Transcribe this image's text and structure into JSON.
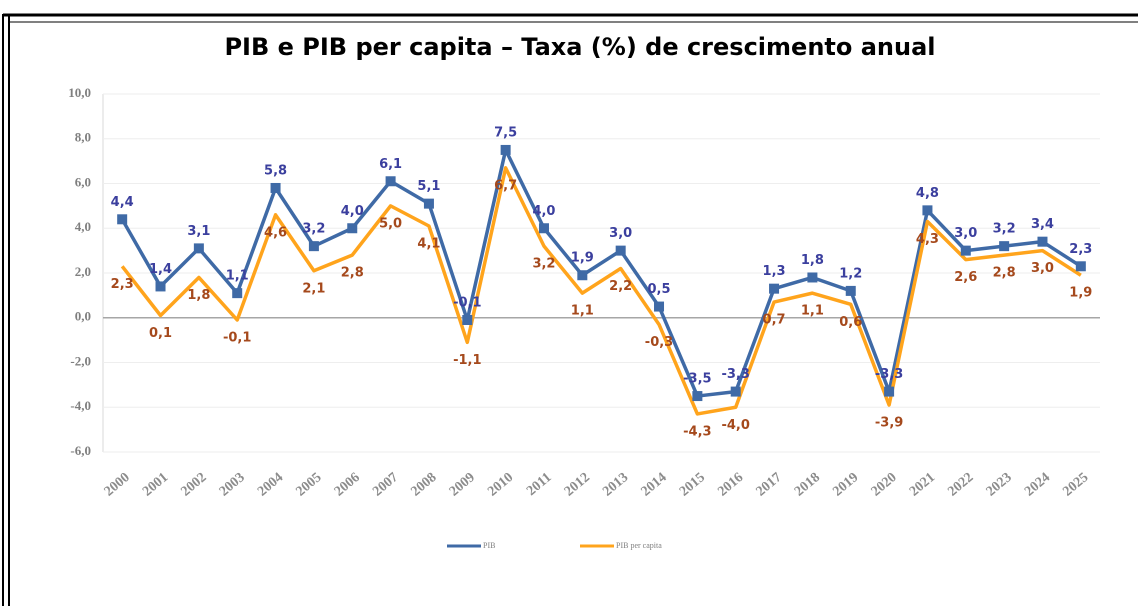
{
  "chart_data": {
    "type": "line",
    "title": "PIB e PIB per capita – Taxa (%) de crescimento anual",
    "categories": [
      "2000",
      "2001",
      "2002",
      "2003",
      "2004",
      "2005",
      "2006",
      "2007",
      "2008",
      "2009",
      "2010",
      "2011",
      "2012",
      "2013",
      "2014",
      "2015",
      "2016",
      "2017",
      "2018",
      "2019",
      "2020",
      "2021",
      "2022",
      "2023",
      "2024",
      "2025"
    ],
    "series": [
      {
        "name": "PIB",
        "color": "#3f6aa6",
        "label_color": "#3b3f9e",
        "marker": "square",
        "values": [
          4.4,
          1.4,
          3.1,
          1.1,
          5.8,
          3.2,
          4.0,
          6.1,
          5.1,
          -0.1,
          7.5,
          4.0,
          1.9,
          3.0,
          0.5,
          -3.5,
          -3.3,
          1.3,
          1.8,
          1.2,
          -3.3,
          4.8,
          3.0,
          3.2,
          3.4,
          2.3
        ],
        "value_labels": [
          "4,4",
          "1,4",
          "3,1",
          "1,1",
          "5,8",
          "3,2",
          "4,0",
          "6,1",
          "5,1",
          "-0,1",
          "7,5",
          "4,0",
          "1,9",
          "3,0",
          "0,5",
          "-3,5",
          "-3,3",
          "1,3",
          "1,8",
          "1,2",
          "-3,3",
          "4,8",
          "3,0",
          "3,2",
          "3,4",
          "2,3"
        ]
      },
      {
        "name": "PIB per capita",
        "color": "#ffa41c",
        "label_color": "#a5491c",
        "marker": "none",
        "values": [
          2.3,
          0.1,
          1.8,
          -0.1,
          4.6,
          2.1,
          2.8,
          5.0,
          4.1,
          -1.1,
          6.7,
          3.2,
          1.1,
          2.2,
          -0.3,
          -4.3,
          -4.0,
          0.7,
          1.1,
          0.6,
          -3.9,
          4.3,
          2.6,
          2.8,
          3.0,
          1.9
        ],
        "value_labels": [
          "2,3",
          "0,1",
          "1,8",
          "-0,1",
          "4,6",
          "2,1",
          "2,8",
          "5,0",
          "4,1",
          "-1,1",
          "6,7",
          "3,2",
          "1,1",
          "2,2",
          "-0,3",
          "-4,3",
          "-4,0",
          "0,7",
          "1,1",
          "0,6",
          "-3,9",
          "4,3",
          "2,6",
          "2,8",
          "3,0",
          "1,9"
        ]
      }
    ],
    "ylim": [
      -6,
      10
    ],
    "yticks": [
      {
        "value": -6,
        "label": "-6,0"
      },
      {
        "value": -4,
        "label": "-4,0"
      },
      {
        "value": -2,
        "label": "-2,0"
      },
      {
        "value": 0,
        "label": "0,0"
      },
      {
        "value": 2,
        "label": "2,0"
      },
      {
        "value": 4,
        "label": "4,0"
      },
      {
        "value": 6,
        "label": "6,0"
      },
      {
        "value": 8,
        "label": "8,0"
      },
      {
        "value": 10,
        "label": "10,0"
      }
    ],
    "grid": true,
    "legend": "bottom"
  }
}
